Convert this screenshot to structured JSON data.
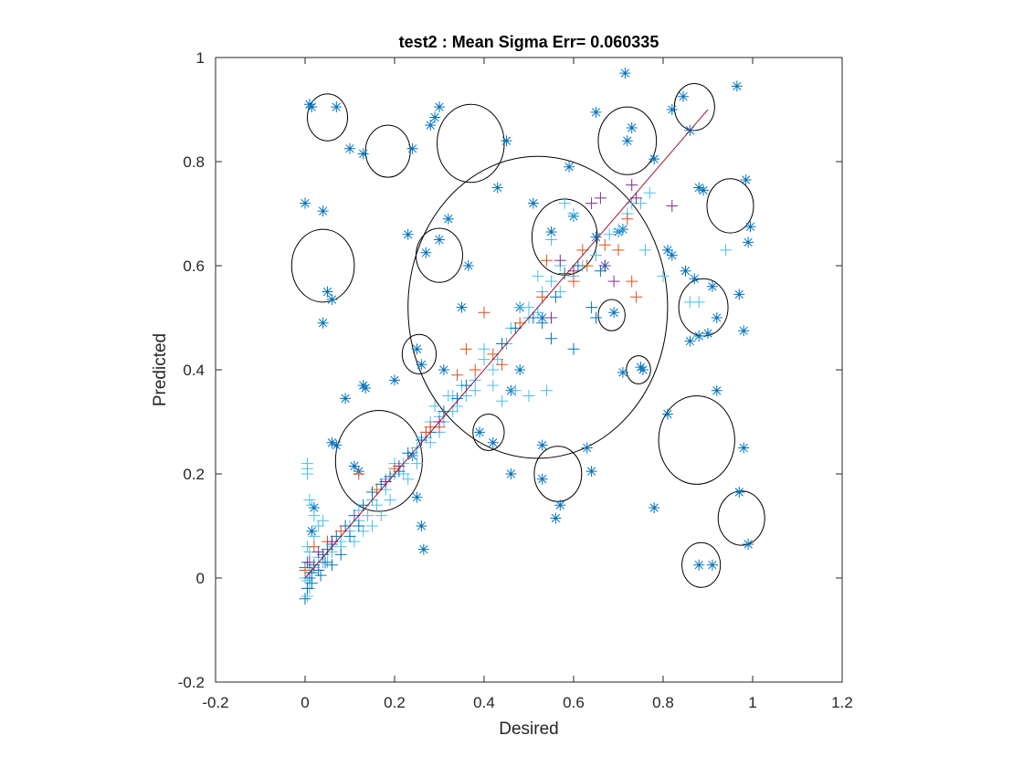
{
  "chart_data": {
    "type": "scatter",
    "title": "test2 :  Mean Sigma Err= 0.060335",
    "xlabel": "Desired",
    "ylabel": "Predicted",
    "xlim": [
      -0.2,
      1.2
    ],
    "ylim": [
      -0.2,
      1
    ],
    "xticks": [
      -0.2,
      0,
      0.2,
      0.4,
      0.6,
      0.8,
      1,
      1.2
    ],
    "xtick_labels": [
      "-0.2",
      "0",
      "0.2",
      "0.4",
      "0.6",
      "0.8",
      "1",
      "1.2"
    ],
    "yticks": [
      -0.2,
      0,
      0.2,
      0.4,
      0.6,
      0.8,
      1
    ],
    "ytick_labels": [
      "-0.2",
      "0",
      "0.2",
      "0.4",
      "0.6",
      "0.8",
      "1"
    ],
    "grid": false,
    "colors": {
      "star": "#0072bd",
      "plus_light": "#4dbeee",
      "plus_dark": "#0072bd",
      "plus_orange": "#d95319",
      "plus_purple": "#7e2f8e",
      "line": "#a2142f",
      "circle": "#000000"
    },
    "reference_line": {
      "x": [
        0,
        0.9
      ],
      "y": [
        0,
        0.9
      ]
    },
    "series": [
      {
        "marker": "star",
        "points": [
          [
            0.01,
            0.91
          ],
          [
            0.015,
            0.905
          ],
          [
            0.07,
            0.905
          ],
          [
            0.1,
            0.825
          ],
          [
            0.13,
            0.815
          ],
          [
            0.24,
            0.825
          ],
          [
            0.28,
            0.87
          ],
          [
            0.29,
            0.885
          ],
          [
            0.3,
            0.905
          ],
          [
            0.45,
            0.84
          ],
          [
            0.59,
            0.79
          ],
          [
            0.65,
            0.895
          ],
          [
            0.715,
            0.97
          ],
          [
            0.72,
            0.84
          ],
          [
            0.73,
            0.865
          ],
          [
            0.78,
            0.805
          ],
          [
            0.82,
            0.9
          ],
          [
            0.845,
            0.925
          ],
          [
            0.86,
            0.86
          ],
          [
            0.965,
            0.945
          ],
          [
            0.0,
            0.72
          ],
          [
            0.04,
            0.705
          ],
          [
            0.05,
            0.55
          ],
          [
            0.06,
            0.535
          ],
          [
            0.04,
            0.49
          ],
          [
            0.23,
            0.66
          ],
          [
            0.3,
            0.65
          ],
          [
            0.32,
            0.69
          ],
          [
            0.27,
            0.625
          ],
          [
            0.365,
            0.6
          ],
          [
            0.43,
            0.75
          ],
          [
            0.51,
            0.72
          ],
          [
            0.55,
            0.665
          ],
          [
            0.6,
            0.695
          ],
          [
            0.65,
            0.655
          ],
          [
            0.67,
            0.6
          ],
          [
            0.7,
            0.665
          ],
          [
            0.71,
            0.67
          ],
          [
            0.88,
            0.75
          ],
          [
            0.89,
            0.745
          ],
          [
            0.985,
            0.765
          ],
          [
            0.995,
            0.675
          ],
          [
            0.99,
            0.645
          ],
          [
            0.81,
            0.63
          ],
          [
            0.82,
            0.62
          ],
          [
            0.85,
            0.59
          ],
          [
            0.87,
            0.575
          ],
          [
            0.91,
            0.56
          ],
          [
            0.92,
            0.5
          ],
          [
            0.97,
            0.545
          ],
          [
            0.88,
            0.465
          ],
          [
            0.86,
            0.455
          ],
          [
            0.9,
            0.47
          ],
          [
            0.98,
            0.475
          ],
          [
            0.69,
            0.51
          ],
          [
            0.35,
            0.52
          ],
          [
            0.48,
            0.52
          ],
          [
            0.53,
            0.5
          ],
          [
            0.25,
            0.44
          ],
          [
            0.2,
            0.38
          ],
          [
            0.26,
            0.41
          ],
          [
            0.31,
            0.4
          ],
          [
            0.13,
            0.37
          ],
          [
            0.135,
            0.365
          ],
          [
            0.09,
            0.345
          ],
          [
            0.48,
            0.4
          ],
          [
            0.46,
            0.36
          ],
          [
            0.71,
            0.395
          ],
          [
            0.75,
            0.405
          ],
          [
            0.755,
            0.4
          ],
          [
            0.39,
            0.28
          ],
          [
            0.42,
            0.26
          ],
          [
            0.53,
            0.255
          ],
          [
            0.63,
            0.25
          ],
          [
            0.46,
            0.2
          ],
          [
            0.53,
            0.19
          ],
          [
            0.57,
            0.14
          ],
          [
            0.56,
            0.115
          ],
          [
            0.64,
            0.205
          ],
          [
            0.78,
            0.135
          ],
          [
            0.81,
            0.315
          ],
          [
            0.92,
            0.36
          ],
          [
            0.98,
            0.25
          ],
          [
            0.97,
            0.165
          ],
          [
            0.99,
            0.065
          ],
          [
            0.88,
            0.025
          ],
          [
            0.91,
            0.025
          ],
          [
            0.06,
            0.26
          ],
          [
            0.07,
            0.255
          ],
          [
            0.11,
            0.215
          ],
          [
            0.12,
            0.205
          ],
          [
            0.24,
            0.235
          ],
          [
            0.25,
            0.155
          ],
          [
            0.26,
            0.1
          ],
          [
            0.265,
            0.055
          ],
          [
            0.02,
            0.135
          ],
          [
            0.015,
            0.09
          ]
        ]
      },
      {
        "marker": "plus",
        "color_key": "plus_light",
        "points": [
          [
            0.005,
            0.22
          ],
          [
            0.005,
            0.21
          ],
          [
            0.005,
            0.2
          ],
          [
            0.01,
            0.15
          ],
          [
            0.015,
            0.14
          ],
          [
            0.02,
            0.12
          ],
          [
            0.03,
            0.1
          ],
          [
            0.04,
            0.11
          ],
          [
            0.02,
            0.08
          ],
          [
            0.005,
            0.06
          ],
          [
            0.01,
            0.05
          ],
          [
            0.03,
            0.04
          ],
          [
            0.05,
            0.03
          ],
          [
            0.06,
            0.06
          ],
          [
            0.08,
            0.07
          ],
          [
            0.1,
            0.1
          ],
          [
            0.12,
            0.13
          ],
          [
            0.14,
            0.12
          ],
          [
            0.16,
            0.14
          ],
          [
            0.18,
            0.19
          ],
          [
            0.2,
            0.2
          ],
          [
            0.22,
            0.22
          ],
          [
            0.25,
            0.25
          ],
          [
            0.27,
            0.27
          ],
          [
            0.3,
            0.31
          ],
          [
            0.32,
            0.35
          ],
          [
            0.35,
            0.37
          ],
          [
            0.38,
            0.38
          ],
          [
            0.4,
            0.44
          ],
          [
            0.43,
            0.42
          ],
          [
            0.46,
            0.48
          ],
          [
            0.48,
            0.52
          ],
          [
            0.5,
            0.52
          ],
          [
            0.53,
            0.55
          ],
          [
            0.55,
            0.57
          ],
          [
            0.57,
            0.6
          ],
          [
            0.6,
            0.58
          ],
          [
            0.62,
            0.6
          ],
          [
            0.65,
            0.62
          ],
          [
            0.68,
            0.66
          ],
          [
            0.7,
            0.67
          ],
          [
            0.72,
            0.7
          ],
          [
            0.75,
            0.72
          ],
          [
            0.77,
            0.74
          ],
          [
            0.6,
            0.7
          ],
          [
            0.58,
            0.72
          ],
          [
            0.55,
            0.65
          ],
          [
            0.52,
            0.58
          ],
          [
            0.5,
            0.5
          ],
          [
            0.45,
            0.45
          ],
          [
            0.42,
            0.4
          ],
          [
            0.4,
            0.42
          ],
          [
            0.38,
            0.36
          ],
          [
            0.36,
            0.35
          ],
          [
            0.34,
            0.33
          ],
          [
            0.33,
            0.32
          ],
          [
            0.3,
            0.28
          ],
          [
            0.28,
            0.3
          ],
          [
            0.26,
            0.27
          ],
          [
            0.24,
            0.24
          ],
          [
            0.22,
            0.2
          ],
          [
            0.2,
            0.22
          ],
          [
            0.18,
            0.17
          ],
          [
            0.15,
            0.15
          ],
          [
            0.12,
            0.11
          ],
          [
            0.1,
            0.09
          ],
          [
            0.08,
            0.06
          ],
          [
            0.06,
            0.05
          ],
          [
            0.04,
            0.03
          ],
          [
            0.02,
            0.02
          ],
          [
            0.01,
            0.01
          ],
          [
            0.005,
            -0.005
          ],
          [
            0.01,
            -0.02
          ],
          [
            0.005,
            -0.035
          ],
          [
            0.0,
            0.0
          ],
          [
            0.52,
            0.51
          ],
          [
            0.57,
            0.55
          ],
          [
            0.73,
            0.72
          ],
          [
            0.76,
            0.63
          ],
          [
            0.8,
            0.58
          ],
          [
            0.86,
            0.53
          ],
          [
            0.88,
            0.53
          ],
          [
            0.94,
            0.63
          ],
          [
            0.42,
            0.37
          ],
          [
            0.44,
            0.34
          ],
          [
            0.47,
            0.36
          ],
          [
            0.5,
            0.35
          ],
          [
            0.54,
            0.36
          ],
          [
            0.29,
            0.33
          ],
          [
            0.31,
            0.3
          ],
          [
            0.33,
            0.35
          ],
          [
            0.28,
            0.26
          ],
          [
            0.25,
            0.22
          ],
          [
            0.23,
            0.19
          ],
          [
            0.19,
            0.15
          ],
          [
            0.17,
            0.12
          ],
          [
            0.15,
            0.1
          ],
          [
            0.13,
            0.09
          ],
          [
            0.11,
            0.07
          ]
        ]
      },
      {
        "marker": "plus",
        "color_key": "plus_dark",
        "points": [
          [
            0.0,
            0.02
          ],
          [
            0.005,
            0.03
          ],
          [
            0.01,
            0.0
          ],
          [
            0.015,
            0.01
          ],
          [
            0.02,
            0.025
          ],
          [
            0.03,
            0.015
          ],
          [
            0.04,
            0.045
          ],
          [
            0.05,
            0.055
          ],
          [
            0.06,
            0.065
          ],
          [
            0.07,
            0.08
          ],
          [
            0.09,
            0.1
          ],
          [
            0.11,
            0.12
          ],
          [
            0.13,
            0.14
          ],
          [
            0.15,
            0.165
          ],
          [
            0.17,
            0.18
          ],
          [
            0.19,
            0.195
          ],
          [
            0.21,
            0.205
          ],
          [
            0.23,
            0.24
          ],
          [
            0.26,
            0.265
          ],
          [
            0.28,
            0.28
          ],
          [
            0.31,
            0.32
          ],
          [
            0.34,
            0.345
          ],
          [
            0.36,
            0.37
          ],
          [
            0.44,
            0.45
          ],
          [
            0.47,
            0.48
          ],
          [
            0.51,
            0.5
          ],
          [
            0.53,
            0.49
          ],
          [
            0.56,
            0.54
          ],
          [
            0.58,
            0.585
          ],
          [
            0.61,
            0.6
          ],
          [
            0.64,
            0.52
          ],
          [
            0.66,
            0.59
          ],
          [
            0.55,
            0.46
          ],
          [
            0.6,
            0.44
          ],
          [
            0.65,
            0.5
          ],
          [
            0.0,
            -0.04
          ],
          [
            0.005,
            -0.02
          ],
          [
            0.015,
            -0.01
          ],
          [
            0.035,
            0.005
          ],
          [
            0.045,
            0.03
          ],
          [
            0.06,
            0.025
          ],
          [
            0.08,
            0.045
          ],
          [
            0.1,
            0.08
          ],
          [
            0.12,
            0.1
          ]
        ]
      },
      {
        "marker": "plus",
        "color_key": "plus_orange",
        "points": [
          [
            0.0,
            0.015
          ],
          [
            0.02,
            0.06
          ],
          [
            0.05,
            0.07
          ],
          [
            0.08,
            0.09
          ],
          [
            0.12,
            0.2
          ],
          [
            0.16,
            0.17
          ],
          [
            0.2,
            0.21
          ],
          [
            0.28,
            0.29
          ],
          [
            0.3,
            0.29
          ],
          [
            0.36,
            0.44
          ],
          [
            0.4,
            0.51
          ],
          [
            0.42,
            0.43
          ],
          [
            0.48,
            0.49
          ],
          [
            0.53,
            0.54
          ],
          [
            0.54,
            0.61
          ],
          [
            0.6,
            0.57
          ],
          [
            0.63,
            0.6
          ],
          [
            0.62,
            0.63
          ],
          [
            0.67,
            0.64
          ],
          [
            0.7,
            0.63
          ],
          [
            0.72,
            0.69
          ],
          [
            0.73,
            0.57
          ],
          [
            0.74,
            0.54
          ],
          [
            0.44,
            0.41
          ],
          [
            0.38,
            0.4
          ],
          [
            0.34,
            0.39
          ],
          [
            0.27,
            0.28
          ]
        ]
      },
      {
        "marker": "plus",
        "color_key": "plus_purple",
        "points": [
          [
            0.01,
            0.03
          ],
          [
            0.03,
            0.05
          ],
          [
            0.06,
            0.07
          ],
          [
            0.18,
            0.185
          ],
          [
            0.21,
            0.215
          ],
          [
            0.3,
            0.3
          ],
          [
            0.55,
            0.5
          ],
          [
            0.57,
            0.61
          ],
          [
            0.6,
            0.59
          ],
          [
            0.64,
            0.72
          ],
          [
            0.66,
            0.73
          ],
          [
            0.69,
            0.57
          ],
          [
            0.73,
            0.755
          ],
          [
            0.74,
            0.73
          ],
          [
            0.82,
            0.715
          ],
          [
            0.67,
            0.6
          ]
        ]
      }
    ],
    "circles": [
      [
        0.05,
        0.885,
        0.045
      ],
      [
        0.185,
        0.82,
        0.05
      ],
      [
        0.37,
        0.835,
        0.075
      ],
      [
        0.72,
        0.84,
        0.065
      ],
      [
        0.87,
        0.905,
        0.045
      ],
      [
        0.95,
        0.715,
        0.052
      ],
      [
        0.04,
        0.6,
        0.07
      ],
      [
        0.3,
        0.62,
        0.052
      ],
      [
        0.52,
        0.52,
        0.29
      ],
      [
        0.58,
        0.655,
        0.073
      ],
      [
        0.685,
        0.505,
        0.03
      ],
      [
        0.89,
        0.52,
        0.055
      ],
      [
        0.255,
        0.43,
        0.038
      ],
      [
        0.745,
        0.4,
        0.027
      ],
      [
        0.165,
        0.225,
        0.097
      ],
      [
        0.41,
        0.28,
        0.035
      ],
      [
        0.565,
        0.2,
        0.053
      ],
      [
        0.875,
        0.265,
        0.085
      ],
      [
        0.975,
        0.115,
        0.052
      ],
      [
        0.885,
        0.025,
        0.043
      ]
    ]
  }
}
